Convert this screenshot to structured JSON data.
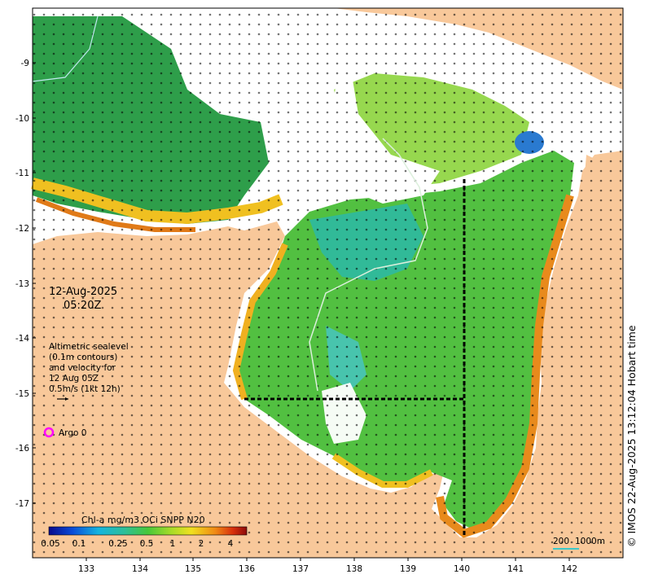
{
  "date_label": "12-Aug-2025",
  "time_label": "05:20Z",
  "legend_note": [
    "Altimetric sealevel",
    "(0.1m contours)",
    "and velocity for",
    "12 Aug 05Z",
    "0.5m/s (1kt 12h)"
  ],
  "argo_label": "Argo 0",
  "colorbar": {
    "title": "Chl-a mg/m3 OCi SNPP N20",
    "ticks": [
      "0.05",
      "0.1",
      "0.25",
      "0.5",
      "1",
      "2",
      "4"
    ]
  },
  "scale_bar": {
    "label_a": "200",
    "label_b": "1000m"
  },
  "credit": "© IMOS 22-Aug-2025 13:12:04 Hobart time",
  "axes": {
    "lon_ticks": [
      "133",
      "134",
      "135",
      "136",
      "137",
      "138",
      "139",
      "140",
      "141",
      "142"
    ],
    "lat_ticks": [
      "-9",
      "-10",
      "-11",
      "-12",
      "-13",
      "-14",
      "-15",
      "-16",
      "-17"
    ]
  },
  "colors": {
    "land": "#f8c89a",
    "ocean_chl_low": "#2ea24a",
    "ocean_chl_mid": "#8fd431",
    "ocean_chl_high": "#e87a1a",
    "cloud": "#ffffff",
    "argo_ring": "#ff00ff"
  }
}
